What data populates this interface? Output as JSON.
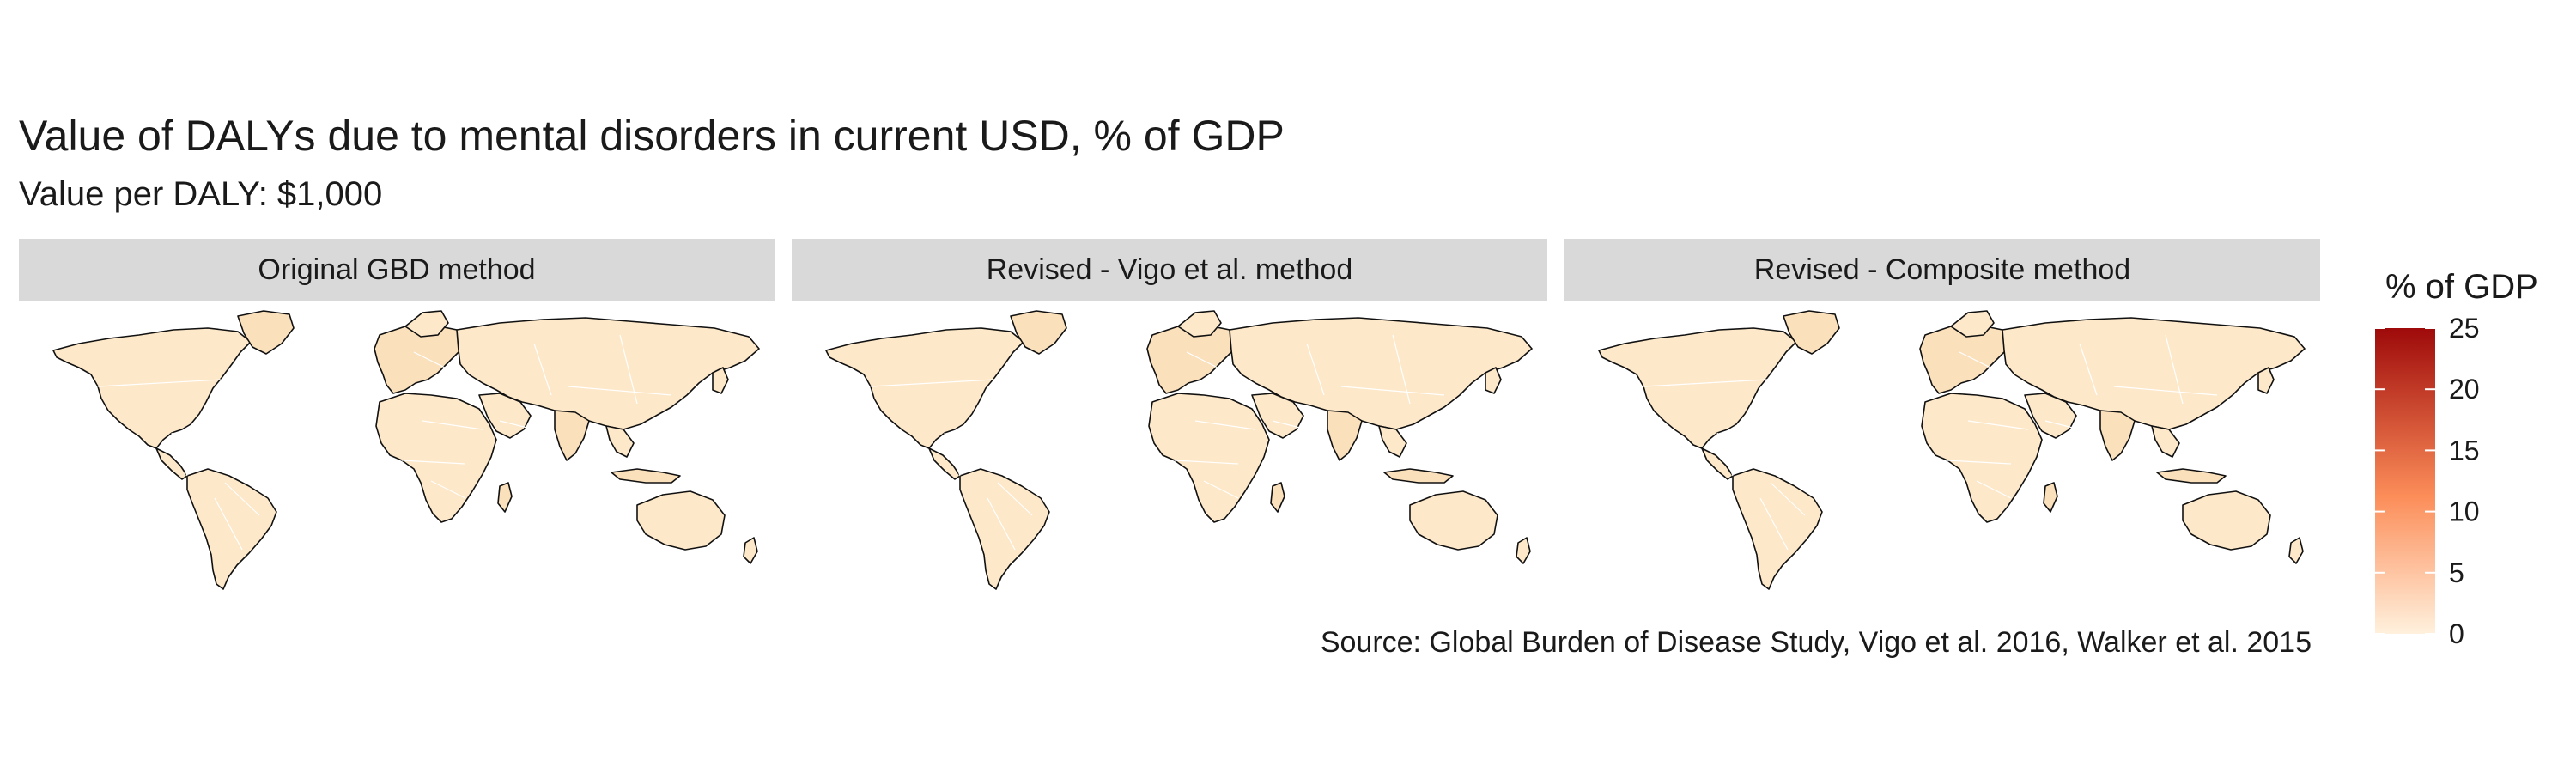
{
  "chart_data": {
    "type": "choropleth-map",
    "title": "Value of DALYs due to mental disorders in current USD, % of GDP",
    "subtitle": "Value per DALY: $1,000",
    "panels": [
      {
        "label": "Original GBD method"
      },
      {
        "label": "Revised - Vigo et al. method"
      },
      {
        "label": "Revised - Composite method"
      }
    ],
    "legend": {
      "title": "% of GDP",
      "min": 0,
      "max": 25,
      "ticks": [
        0,
        5,
        10,
        15,
        20,
        25
      ],
      "colors": {
        "low": "#fff1dd",
        "mid": "#fc8d59",
        "high": "#9e0a0a"
      },
      "placement": "right"
    },
    "fill": {
      "land": "#fde8c9",
      "land_alt": "#fbe0bc",
      "border": "#ffffff",
      "outline": "#111111"
    },
    "source": "Source: Global Burden of Disease Study, Vigo et al. 2016, Walker et al. 2015"
  }
}
